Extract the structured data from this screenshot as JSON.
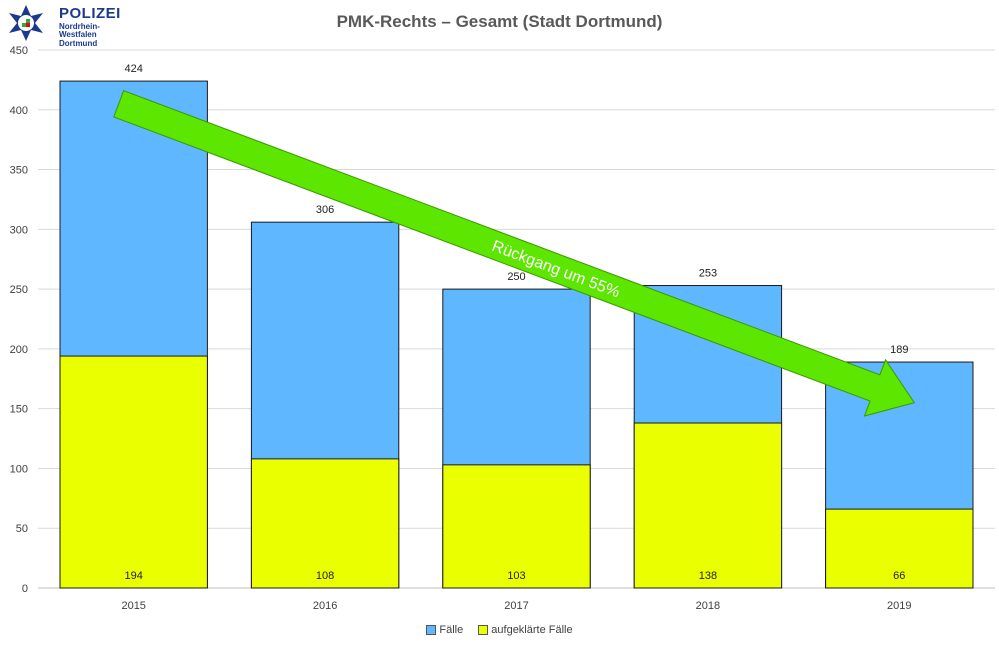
{
  "logo": {
    "name": "POLIZEI",
    "line1": "Nordrhein-Westfalen",
    "line2": "Dortmund"
  },
  "chart_data": {
    "type": "bar",
    "title": "PMK-Rechts – Gesamt (Stadt Dortmund)",
    "categories": [
      "2015",
      "2016",
      "2017",
      "2018",
      "2019"
    ],
    "series": [
      {
        "name": "Fälle",
        "values": [
          424,
          306,
          250,
          253,
          189
        ],
        "color": "#5fb7ff"
      },
      {
        "name": "aufgeklärte Fälle",
        "values": [
          194,
          108,
          103,
          138,
          66
        ],
        "color": "#eaff00"
      }
    ],
    "ylim": [
      0,
      450
    ],
    "yticks": [
      0,
      50,
      100,
      150,
      200,
      250,
      300,
      350,
      400,
      450
    ],
    "grid": true,
    "legend_position": "bottom",
    "annotation": {
      "text": "Rückgang um 55%",
      "color": "#5ce600",
      "from_category": "2015",
      "to_category": "2019"
    }
  }
}
